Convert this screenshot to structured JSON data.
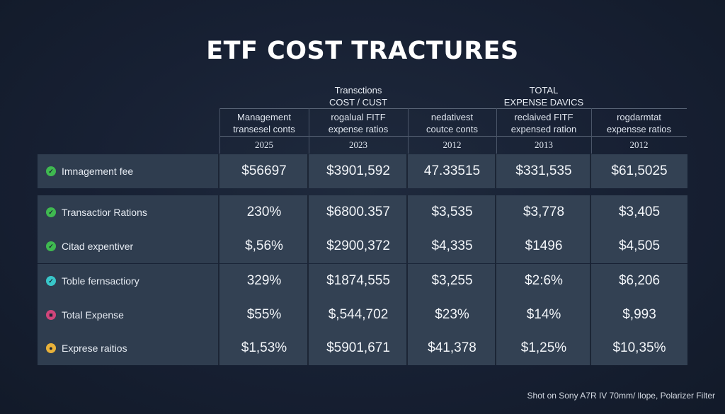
{
  "title": "ETF COST TRACTURES",
  "groups": [
    {
      "line1": "Transctions",
      "line2": "COST / CUST"
    },
    {
      "line1": "TOTAL",
      "line2": "EXPENSE DAVICS"
    }
  ],
  "columns": [
    {
      "line1": "Management",
      "line2": "transesel conts",
      "year": "2025"
    },
    {
      "line1": "rogalual FITF",
      "line2": "expense ratios",
      "year": "2023"
    },
    {
      "line1": "nedativest",
      "line2": "coutce conts",
      "year": "2012"
    },
    {
      "line1": "reclaived FITF",
      "line2": "expensed ration",
      "year": "2013"
    },
    {
      "line1": "rogdarmtat",
      "line2": "expensse ratios",
      "year": "2012"
    }
  ],
  "rows": [
    {
      "label": "Imnagement fee",
      "icon": "check-circle-icon",
      "icon_color": "#3fb950",
      "values": [
        "$56697",
        "$3901,592",
        "47.33515",
        "$331,535",
        "$61,5025"
      ]
    },
    {
      "label": "Transactior Rations",
      "icon": "check-circle-icon",
      "icon_color": "#3fb950",
      "values": [
        "230%",
        "$6800.357",
        "$3,535",
        "$3,778",
        "$3,405"
      ]
    },
    {
      "label": "Citad expentiver",
      "icon": "check-circle-icon",
      "icon_color": "#3fb950",
      "values": [
        "$,56%",
        "$2900,372",
        "$4,335",
        "$1496",
        "$4,505"
      ]
    },
    {
      "label": "Toble fernsactiory",
      "icon": "check-circle-icon",
      "icon_color": "#38c6c9",
      "values": [
        "329%",
        "$1874,555",
        "$3,255",
        "$2:6%",
        "$6,206"
      ]
    },
    {
      "label": "Total Expense",
      "icon": "app-icon",
      "icon_color": "#d0457a",
      "values": [
        "$55%",
        "$,544,702",
        "$23%",
        "$14%",
        "$,993"
      ]
    },
    {
      "label": "Exprese raitios",
      "icon": "chrome-icon",
      "icon_color": "#e8b13a",
      "values": [
        "$1,53%",
        "$5901,671",
        "$41,378",
        "$1,25%",
        "$10,35%"
      ]
    }
  ],
  "caption": "Shot on Sony A7R IV 70mm/ llope, Polarizer Filter"
}
